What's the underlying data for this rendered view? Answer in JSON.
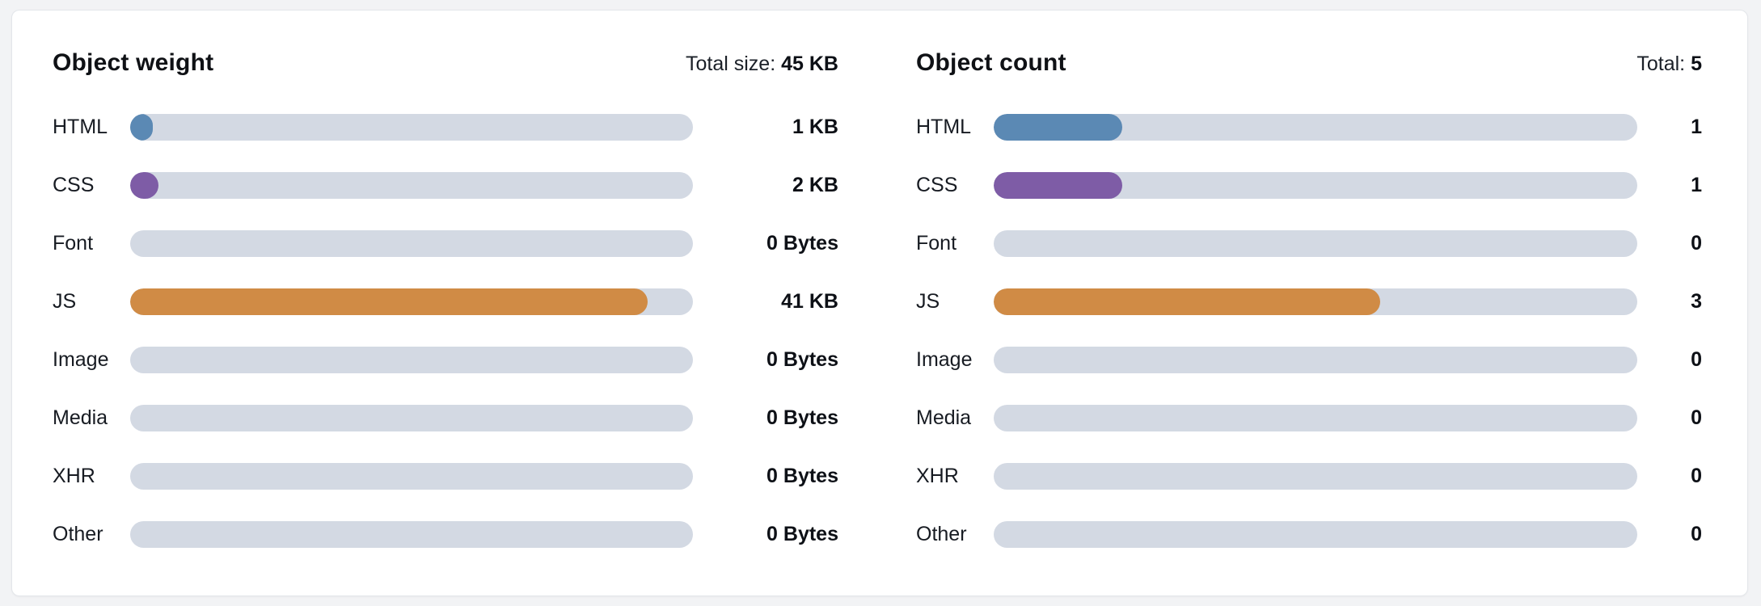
{
  "charts": [
    {
      "title": "Object weight",
      "total_label": "Total size:",
      "total_value": "45 KB",
      "rows": [
        {
          "label": "HTML",
          "value": "1 KB",
          "percent": 4,
          "color": "#5b89b4"
        },
        {
          "label": "CSS",
          "value": "2 KB",
          "percent": 5,
          "color": "#7e5ca6"
        },
        {
          "label": "Font",
          "value": "0 Bytes",
          "percent": 0,
          "color": ""
        },
        {
          "label": "JS",
          "value": "41 KB",
          "percent": 92,
          "color": "#d08b45"
        },
        {
          "label": "Image",
          "value": "0 Bytes",
          "percent": 0,
          "color": ""
        },
        {
          "label": "Media",
          "value": "0 Bytes",
          "percent": 0,
          "color": ""
        },
        {
          "label": "XHR",
          "value": "0 Bytes",
          "percent": 0,
          "color": ""
        },
        {
          "label": "Other",
          "value": "0 Bytes",
          "percent": 0,
          "color": ""
        }
      ]
    },
    {
      "title": "Object count",
      "total_label": "Total:",
      "total_value": "5",
      "rows": [
        {
          "label": "HTML",
          "value": "1",
          "percent": 20,
          "color": "#5b89b4"
        },
        {
          "label": "CSS",
          "value": "1",
          "percent": 20,
          "color": "#7e5ca6"
        },
        {
          "label": "Font",
          "value": "0",
          "percent": 0,
          "color": ""
        },
        {
          "label": "JS",
          "value": "3",
          "percent": 60,
          "color": "#d08b45"
        },
        {
          "label": "Image",
          "value": "0",
          "percent": 0,
          "color": ""
        },
        {
          "label": "Media",
          "value": "0",
          "percent": 0,
          "color": ""
        },
        {
          "label": "XHR",
          "value": "0",
          "percent": 0,
          "color": ""
        },
        {
          "label": "Other",
          "value": "0",
          "percent": 0,
          "color": ""
        }
      ]
    }
  ],
  "colors": {
    "track": "#d3d9e3",
    "html": "#5b89b4",
    "css": "#7e5ca6",
    "js": "#d08b45",
    "card_background": "#ffffff",
    "page_background": "#f2f3f5"
  },
  "chart_data": [
    {
      "type": "bar",
      "orientation": "horizontal",
      "title": "Object weight",
      "total_label": "Total size: 45 KB",
      "categories": [
        "HTML",
        "CSS",
        "Font",
        "JS",
        "Image",
        "Media",
        "XHR",
        "Other"
      ],
      "values_kb": [
        1,
        2,
        0,
        41,
        0,
        0,
        0,
        0
      ],
      "value_labels": [
        "1 KB",
        "2 KB",
        "0 Bytes",
        "41 KB",
        "0 Bytes",
        "0 Bytes",
        "0 Bytes",
        "0 Bytes"
      ],
      "total_kb": 45,
      "grid": false,
      "legend": false
    },
    {
      "type": "bar",
      "orientation": "horizontal",
      "title": "Object count",
      "total_label": "Total: 5",
      "categories": [
        "HTML",
        "CSS",
        "Font",
        "JS",
        "Image",
        "Media",
        "XHR",
        "Other"
      ],
      "values": [
        1,
        1,
        0,
        3,
        0,
        0,
        0,
        0
      ],
      "total": 5,
      "grid": false,
      "legend": false
    }
  ]
}
